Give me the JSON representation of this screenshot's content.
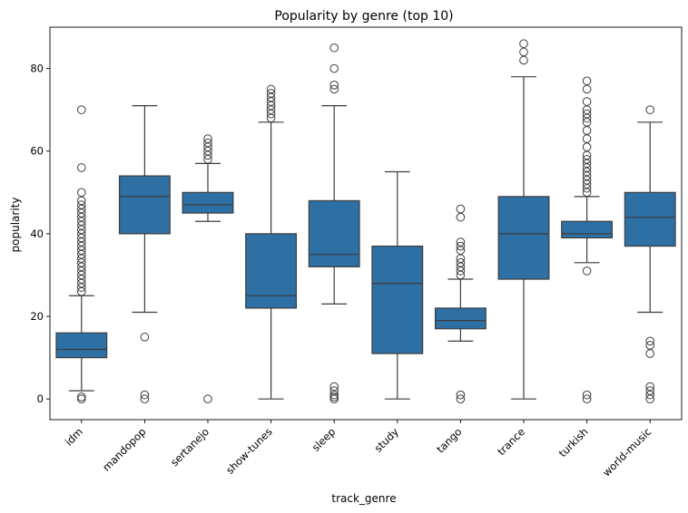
{
  "chart_data": {
    "type": "box",
    "title": "Popularity by genre (top 10)",
    "xlabel": "track_genre",
    "ylabel": "popularity",
    "ylim": [
      -5,
      90
    ],
    "yticks": [
      0,
      20,
      40,
      60,
      80
    ],
    "grid": false,
    "box_color": "#2e6fa4",
    "categories": [
      "idm",
      "mandopop",
      "sertanejo",
      "show-tunes",
      "sleep",
      "study",
      "tango",
      "trance",
      "turkish",
      "world-music"
    ],
    "boxes": [
      {
        "category": "idm",
        "whisker_low": 2,
        "q1": 10,
        "median": 12,
        "q3": 16,
        "whisker_high": 25,
        "outliers": [
          0,
          0.5,
          26,
          27,
          28,
          29,
          30,
          31,
          32,
          33,
          34,
          35,
          36,
          37,
          38,
          39,
          40,
          41,
          42,
          43,
          44,
          45,
          46,
          47,
          48,
          50,
          56,
          70
        ]
      },
      {
        "category": "mandopop",
        "whisker_low": 21,
        "q1": 40,
        "median": 49,
        "q3": 54,
        "whisker_high": 71,
        "outliers": [
          0,
          1,
          15
        ]
      },
      {
        "category": "sertanejo",
        "whisker_low": 43,
        "q1": 45,
        "median": 47,
        "q3": 50,
        "whisker_high": 57,
        "outliers": [
          0,
          58,
          59,
          60,
          61,
          62,
          63
        ]
      },
      {
        "category": "show-tunes",
        "whisker_low": 0,
        "q1": 22,
        "median": 25,
        "q3": 40,
        "whisker_high": 67,
        "outliers": [
          68,
          69,
          70,
          71,
          72,
          73,
          74,
          75
        ]
      },
      {
        "category": "sleep",
        "whisker_low": 23,
        "q1": 32,
        "median": 35,
        "q3": 48,
        "whisker_high": 71,
        "outliers": [
          0,
          0.5,
          1,
          2,
          3,
          75,
          76,
          80,
          85
        ]
      },
      {
        "category": "study",
        "whisker_low": 0,
        "q1": 11,
        "median": 28,
        "q3": 37,
        "whisker_high": 55,
        "outliers": []
      },
      {
        "category": "tango",
        "whisker_low": 14,
        "q1": 17,
        "median": 19,
        "q3": 22,
        "whisker_high": 29,
        "outliers": [
          0,
          1,
          30,
          31,
          32,
          33,
          34,
          36,
          37,
          38,
          44,
          46
        ]
      },
      {
        "category": "trance",
        "whisker_low": 0,
        "q1": 29,
        "median": 40,
        "q3": 49,
        "whisker_high": 78,
        "outliers": [
          82,
          84,
          86
        ]
      },
      {
        "category": "turkish",
        "whisker_low": 33,
        "q1": 39,
        "median": 40,
        "q3": 43,
        "whisker_high": 49,
        "outliers": [
          0,
          1,
          31,
          50,
          51,
          52,
          53,
          54,
          55,
          56,
          57,
          58,
          59,
          61,
          63,
          65,
          67,
          68,
          69,
          70,
          72,
          75,
          77
        ]
      },
      {
        "category": "world-music",
        "whisker_low": 21,
        "q1": 37,
        "median": 44,
        "q3": 50,
        "whisker_high": 67,
        "outliers": [
          0,
          1,
          2,
          3,
          11,
          13,
          14,
          70
        ]
      }
    ]
  }
}
